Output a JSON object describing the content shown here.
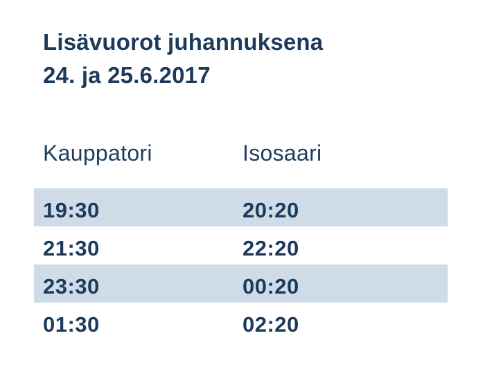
{
  "title": {
    "line1": "Lisävuorot juhannuksena",
    "line2": "24. ja 25.6.2017"
  },
  "table": {
    "columns": [
      "Kauppatori",
      "Isosaari"
    ],
    "rows": [
      [
        "19:30",
        "20:20"
      ],
      [
        "21:30",
        "22:20"
      ],
      [
        "23:30",
        "00:20"
      ],
      [
        "01:30",
        "02:20"
      ]
    ]
  },
  "colors": {
    "text_navy": "#1b3a5c",
    "row_highlight": "#cfdbe6",
    "background": "#ffffff"
  }
}
